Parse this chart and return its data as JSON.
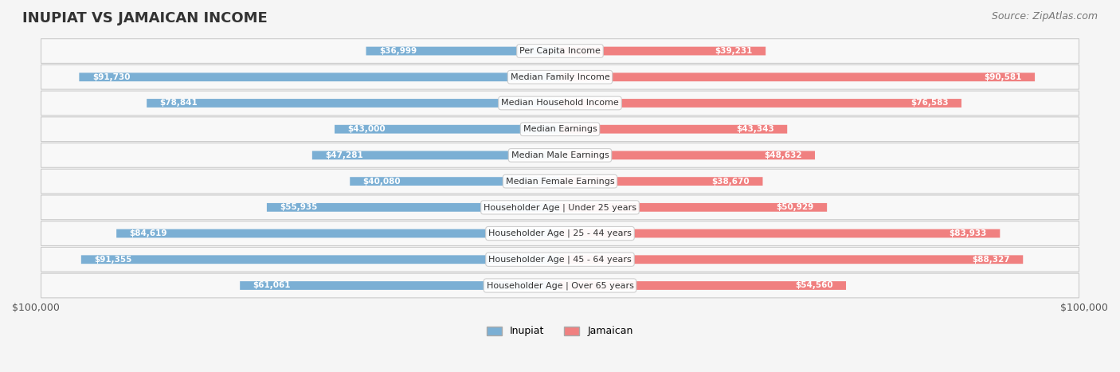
{
  "title": "INUPIAT VS JAMAICAN INCOME",
  "source": "Source: ZipAtlas.com",
  "categories": [
    "Per Capita Income",
    "Median Family Income",
    "Median Household Income",
    "Median Earnings",
    "Median Male Earnings",
    "Median Female Earnings",
    "Householder Age | Under 25 years",
    "Householder Age | 25 - 44 years",
    "Householder Age | 45 - 64 years",
    "Householder Age | Over 65 years"
  ],
  "inupiat_values": [
    36999,
    91730,
    78841,
    43000,
    47281,
    40080,
    55935,
    84619,
    91355,
    61061
  ],
  "jamaican_values": [
    39231,
    90581,
    76583,
    43343,
    48632,
    38670,
    50929,
    83933,
    88327,
    54560
  ],
  "inupiat_color": "#7BAFD4",
  "jamaican_color": "#F08080",
  "max_value": 100000,
  "inupiat_label": "Inupiat",
  "jamaican_label": "Jamaican",
  "title_fontsize": 13,
  "source_fontsize": 9,
  "value_fontsize": 7.5,
  "cat_fontsize": 8
}
